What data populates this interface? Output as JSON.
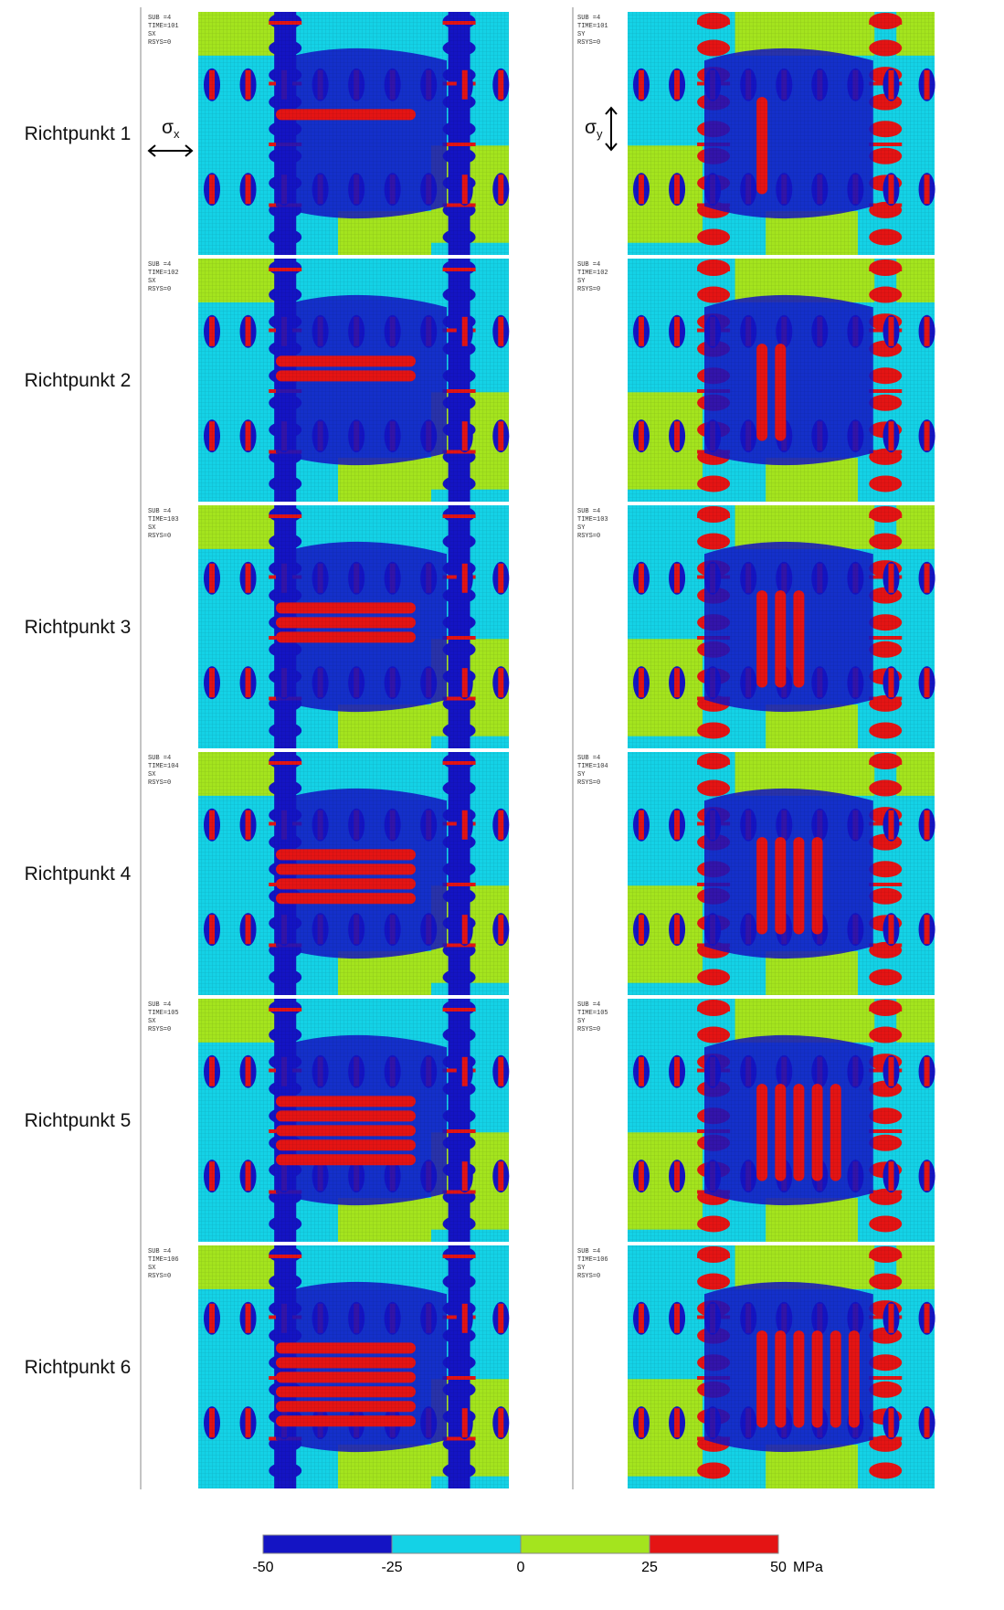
{
  "rows": [
    {
      "label": "Richtpunkt 1",
      "panels": [
        {
          "text": [
            "SUB =4",
            "TIME=101",
            "SX",
            "RSYS=0"
          ]
        },
        {
          "text": [
            "SUB =4",
            "TIME=101",
            "SY",
            "RSYS=0"
          ]
        }
      ]
    },
    {
      "label": "Richtpunkt 2",
      "panels": [
        {
          "text": [
            "SUB =4",
            "TIME=102",
            "SX",
            "RSYS=0"
          ]
        },
        {
          "text": [
            "SUB =4",
            "TIME=102",
            "SY",
            "RSYS=0"
          ]
        }
      ]
    },
    {
      "label": "Richtpunkt 3",
      "panels": [
        {
          "text": [
            "SUB =4",
            "TIME=103",
            "SX",
            "RSYS=0"
          ]
        },
        {
          "text": [
            "SUB =4",
            "TIME=103",
            "SY",
            "RSYS=0"
          ]
        }
      ]
    },
    {
      "label": "Richtpunkt 4",
      "panels": [
        {
          "text": [
            "SUB =4",
            "TIME=104",
            "SX",
            "RSYS=0"
          ]
        },
        {
          "text": [
            "SUB =4",
            "TIME=104",
            "SY",
            "RSYS=0"
          ]
        }
      ]
    },
    {
      "label": "Richtpunkt 5",
      "panels": [
        {
          "text": [
            "SUB =4",
            "TIME=105",
            "SX",
            "RSYS=0"
          ]
        },
        {
          "text": [
            "SUB =4",
            "TIME=105",
            "SY",
            "RSYS=0"
          ]
        }
      ]
    },
    {
      "label": "Richtpunkt 6",
      "panels": [
        {
          "text": [
            "SUB =4",
            "TIME=106",
            "SX",
            "RSYS=0"
          ]
        },
        {
          "text": [
            "SUB =4",
            "TIME=106",
            "SY",
            "RSYS=0"
          ]
        }
      ]
    }
  ],
  "symbols": {
    "sigma": "σ",
    "x": "x",
    "y": "y"
  },
  "colorbar": {
    "ticks": [
      -50,
      -25,
      0,
      25,
      50
    ],
    "unit": "MPa",
    "colors": [
      "#1414c4",
      "#14d2e6",
      "#a4e41e",
      "#e41414"
    ]
  }
}
